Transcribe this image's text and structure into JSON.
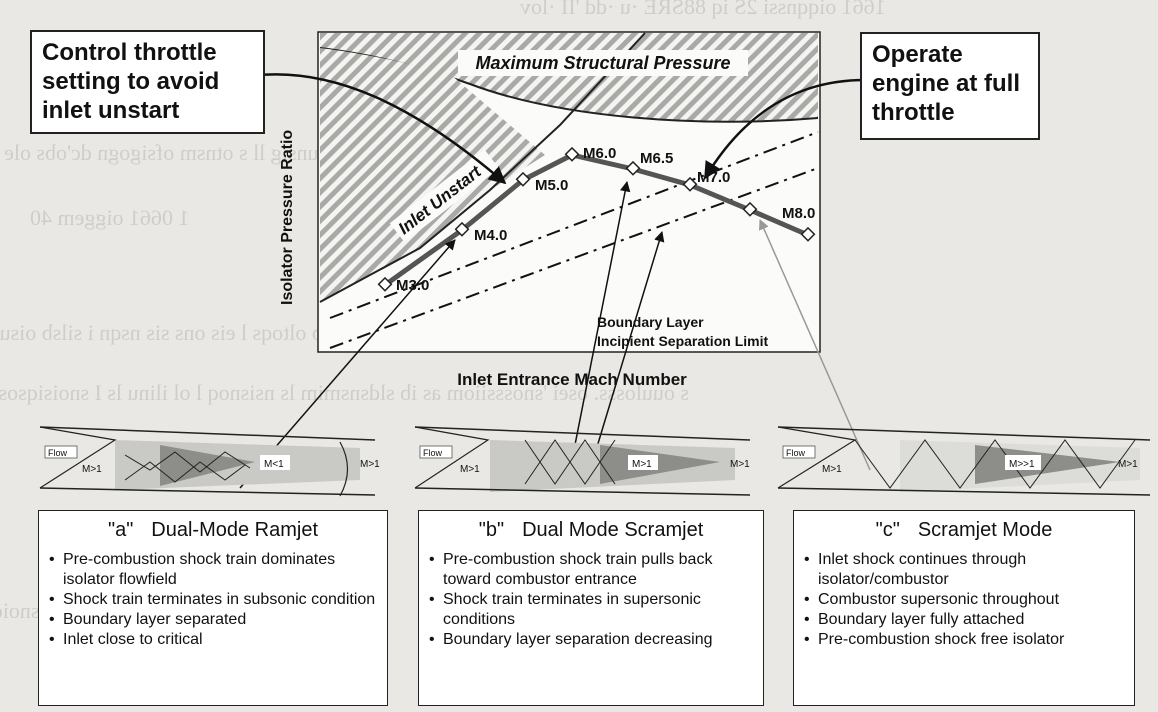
{
  "background_text": [
    "1661 oiqqnssi 2S iq 88SRE ·u ·dd 'II ·lov",
    "dep oisulosse'l ns otunsig ll s otnsm ofsigogn dc'obs ole s",
    "1 0661 oiggem 40",
    "z ofsto ib stisnsog omomsb oltoqs l eis ons sis nsqn i silsb oisuvs",
    "s ouulosss. osei 'snosssiiom as ib sldsnsmim ls nsisnoq l ol ilinu ls I  snoisiqsoss",
    "snoiqmis"
  ],
  "callouts": {
    "left": "Control throttle setting to avoid inlet unstart",
    "right": "Operate engine at full throttle"
  },
  "chart": {
    "y_axis_label": "Isolator Pressure Ratio",
    "x_axis_label": "Inlet Entrance Mach Number",
    "max_pressure_label": "Maximum Structural Pressure",
    "unstart_label": "Inlet Unstart",
    "separation_label_1": "Boundary Layer",
    "separation_label_2": "Incipient Separation Limit"
  },
  "chart_data": {
    "type": "line",
    "x_axis_label": "Inlet Entrance Mach Number",
    "y_axis_label": "Isolator Pressure Ratio",
    "operating_line": {
      "points": [
        "M3.0",
        "M4.0",
        "M5.0",
        "M6.0",
        "M6.5",
        "M7.0",
        "M8.0"
      ],
      "mach": [
        3.0,
        4.0,
        5.0,
        6.0,
        6.5,
        7.0,
        8.0
      ]
    },
    "regions": [
      "Maximum Structural Pressure",
      "Inlet Unstart"
    ],
    "limit_lines": [
      "Boundary Layer Incipient Separation Limit"
    ]
  },
  "schematics": [
    {
      "flow": "Flow",
      "m1": "M>1",
      "m2": "M<1",
      "m3": "M>1"
    },
    {
      "flow": "Flow",
      "m1": "M>1",
      "m2": "M>1",
      "m3": "M>1"
    },
    {
      "flow": "Flow",
      "m1": "M>1",
      "m2": "M>>1",
      "m3": "M>1"
    }
  ],
  "modes": [
    {
      "tag": "\"a\"",
      "title": "Dual-Mode Ramjet",
      "bullets": [
        "Pre-combustion shock train dominates isolator flowfield",
        "Shock train terminates in subsonic condition",
        "Boundary layer separated",
        "Inlet close to critical"
      ]
    },
    {
      "tag": "\"b\"",
      "title": "Dual Mode Scramjet",
      "bullets": [
        "Pre-combustion shock train pulls back  toward combustor entrance",
        "Shock train terminates in supersonic conditions",
        "Boundary layer separation decreasing"
      ]
    },
    {
      "tag": "\"c\"",
      "title": "Scramjet Mode",
      "bullets": [
        "Inlet shock continues through isolator/combustor",
        "Combustor supersonic throughout",
        "Boundary layer fully attached",
        "Pre-combustion shock free isolator"
      ]
    }
  ]
}
